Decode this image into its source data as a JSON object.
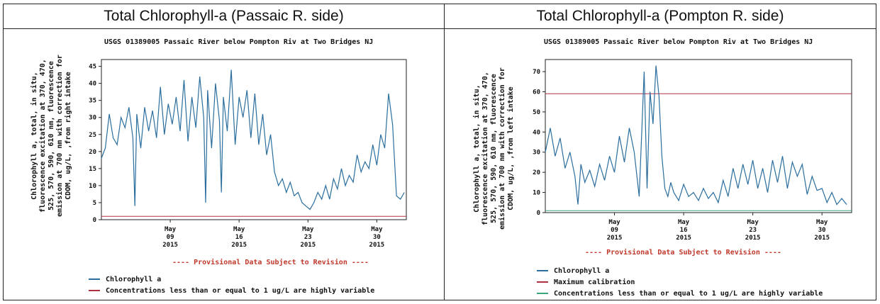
{
  "panels": [
    {
      "heading": "Total Chlorophyll-a (Passaic R. side)",
      "chart_data": {
        "type": "line",
        "title": "USGS 01389005 Passaic River below Pompton Riv at Two Bridges NJ",
        "ylabel_lines": [
          "Chlorophyll a, total, in situ,",
          "fluorescence excitation at 370, 470,",
          "525, 570, 590, 610 nm, fluorescence",
          "emission at 700 nm with correction for",
          "CDOM, ug/L, ,from right intake"
        ],
        "ylim": [
          0,
          47
        ],
        "yticks": [
          "0",
          "5",
          "10",
          "15",
          "20",
          "25",
          "30",
          "35",
          "40",
          "45"
        ],
        "xlim": [
          0,
          31
        ],
        "xticks": [
          {
            "x": 7,
            "lines": [
              "May",
              "09",
              "2015"
            ]
          },
          {
            "x": 14,
            "lines": [
              "May",
              "16",
              "2015"
            ]
          },
          {
            "x": 21,
            "lines": [
              "May",
              "23",
              "2015"
            ]
          },
          {
            "x": 28,
            "lines": [
              "May",
              "30",
              "2015"
            ]
          }
        ],
        "series": [
          {
            "name": "Chlorophyll a",
            "color": "#2b6e9e",
            "x": [
              0,
              0.4,
              0.8,
              1.2,
              1.6,
              2.0,
              2.4,
              2.8,
              3.2,
              3.4,
              3.6,
              4.0,
              4.4,
              4.8,
              5.2,
              5.6,
              6.0,
              6.4,
              6.8,
              7.2,
              7.6,
              8.0,
              8.4,
              8.8,
              9.2,
              9.6,
              10.0,
              10.4,
              10.6,
              10.8,
              11.2,
              11.6,
              12.0,
              12.2,
              12.4,
              12.8,
              13.2,
              13.6,
              14.0,
              14.4,
              14.8,
              15.2,
              15.6,
              16.0,
              16.4,
              16.8,
              17.2,
              17.6,
              18.0,
              18.4,
              18.8,
              19.2,
              19.6,
              20.0,
              20.4,
              20.8,
              21.2,
              21.6,
              22.0,
              22.4,
              22.8,
              23.2,
              23.6,
              24.0,
              24.4,
              24.8,
              25.2,
              25.6,
              26.0,
              26.4,
              26.8,
              27.2,
              27.6,
              28.0,
              28.4,
              28.8,
              29.2,
              29.6,
              30.0,
              30.4,
              30.8
            ],
            "y": [
              18,
              21,
              31,
              24,
              22,
              30,
              27,
              33,
              24,
              4,
              31,
              21,
              33,
              26,
              32,
              24,
              39,
              25,
              34,
              28,
              36,
              26,
              41,
              23,
              36,
              27,
              42,
              30,
              5,
              38,
              21,
              40,
              29,
              8,
              36,
              26,
              44,
              22,
              36,
              30,
              38,
              24,
              37,
              22,
              31,
              19,
              25,
              14,
              10,
              12,
              8,
              11,
              7,
              8,
              5,
              4,
              3,
              5,
              8,
              6,
              10,
              6,
              12,
              9,
              15,
              10,
              13,
              11,
              19,
              14,
              17,
              15,
              22,
              16,
              25,
              21,
              37,
              28,
              7,
              6,
              8
            ]
          },
          {
            "name": "Concentrations less than or equal to 1 ug/L are highly variable",
            "color": "#b03040",
            "x": [
              0,
              31
            ],
            "y": [
              1,
              1
            ]
          }
        ]
      },
      "provisional": "---- Provisional Data Subject to Revision ----",
      "legend": [
        {
          "label": "Chlorophyll a",
          "color": "#2b6e9e"
        },
        {
          "label": "Concentrations less than or equal to 1 ug/L are highly variable",
          "color": "#b03040"
        }
      ]
    },
    {
      "heading": "Total Chlorophyll-a (Pompton R. side)",
      "chart_data": {
        "type": "line",
        "title": "USGS 01389005 Passaic River below Pompton Riv at Two Bridges NJ",
        "ylabel_lines": [
          "Chlorophyll a, total, in situ,",
          "fluorescence excitation at 370, 470,",
          "525, 570, 590, 610 nm, fluorescence",
          "emission at 700 nm with correction for",
          "CDOM, ug/L, ,from left intake"
        ],
        "ylim": [
          0,
          76
        ],
        "yticks": [
          "0",
          "10",
          "20",
          "30",
          "40",
          "50",
          "60",
          "70"
        ],
        "xlim": [
          0,
          31
        ],
        "xticks": [
          {
            "x": 7,
            "lines": [
              "May",
              "09",
              "2015"
            ]
          },
          {
            "x": 14,
            "lines": [
              "May",
              "16",
              "2015"
            ]
          },
          {
            "x": 21,
            "lines": [
              "May",
              "23",
              "2015"
            ]
          },
          {
            "x": 28,
            "lines": [
              "May",
              "30",
              "2015"
            ]
          }
        ],
        "series": [
          {
            "name": "Chlorophyll a",
            "color": "#2b6e9e",
            "x": [
              0,
              0.5,
              1.0,
              1.5,
              2.0,
              2.5,
              3.0,
              3.3,
              3.6,
              4.0,
              4.5,
              5.0,
              5.5,
              6.0,
              6.5,
              7.0,
              7.5,
              8.0,
              8.5,
              9.0,
              9.5,
              10.0,
              10.3,
              10.6,
              10.9,
              11.2,
              11.5,
              11.8,
              12.1,
              12.4,
              12.7,
              13.0,
              13.5,
              14.0,
              14.5,
              15.0,
              15.5,
              16.0,
              16.5,
              17.0,
              17.5,
              18.0,
              18.5,
              19.0,
              19.5,
              20.0,
              20.5,
              21.0,
              21.5,
              22.0,
              22.5,
              23.0,
              23.5,
              24.0,
              24.5,
              25.0,
              25.5,
              26.0,
              26.5,
              27.0,
              27.5,
              28.0,
              28.5,
              29.0,
              29.5,
              30.0,
              30.5
            ],
            "y": [
              30,
              42,
              28,
              37,
              22,
              30,
              18,
              4,
              24,
              15,
              21,
              13,
              24,
              16,
              28,
              20,
              38,
              25,
              42,
              30,
              8,
              70,
              12,
              60,
              44,
              73,
              58,
              28,
              12,
              8,
              15,
              10,
              6,
              14,
              8,
              10,
              6,
              12,
              7,
              10,
              5,
              16,
              8,
              22,
              12,
              24,
              14,
              26,
              12,
              22,
              10,
              26,
              15,
              28,
              12,
              25,
              18,
              24,
              9,
              18,
              11,
              12,
              5,
              10,
              4,
              7,
              4
            ]
          },
          {
            "name": "Maximum calibration",
            "color": "#b03040",
            "x": [
              0,
              31
            ],
            "y": [
              59,
              59
            ]
          },
          {
            "name": "Concentrations less than or equal to 1 ug/L are highly variable",
            "color": "#3aa57a",
            "x": [
              0,
              31
            ],
            "y": [
              1,
              1
            ]
          }
        ]
      },
      "provisional": "---- Provisional Data Subject to Revision ----",
      "legend": [
        {
          "label": "Chlorophyll a",
          "color": "#2b6e9e"
        },
        {
          "label": "Maximum calibration",
          "color": "#b03040"
        },
        {
          "label": "Concentrations less than or equal to 1 ug/L are highly variable",
          "color": "#3aa57a"
        }
      ]
    }
  ]
}
